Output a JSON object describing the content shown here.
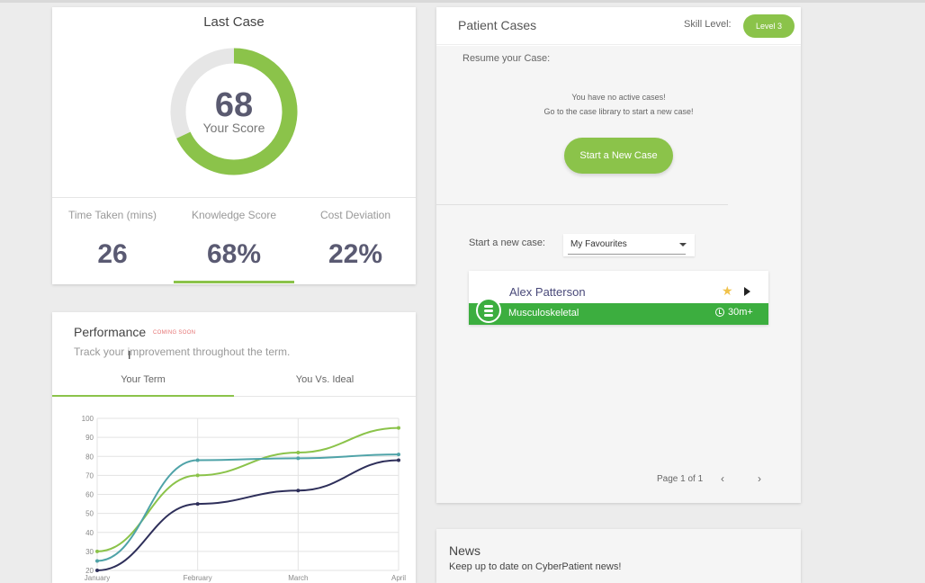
{
  "last_case": {
    "title": "Last Case",
    "score": "68",
    "score_fraction": 0.68,
    "score_label": "Your Score",
    "stats": [
      {
        "label": "Time Taken (mins)",
        "value": "26"
      },
      {
        "label": "Knowledge Score",
        "value": "68%"
      },
      {
        "label": "Cost Deviation",
        "value": "22%"
      }
    ]
  },
  "performance": {
    "title": "Performance",
    "badge": "COMING SOON",
    "subtitle": "Track your improvement throughout the term.",
    "tabs": [
      "Your Term",
      "You Vs. Ideal"
    ]
  },
  "chart_data": {
    "type": "line",
    "categories": [
      "January",
      "February",
      "March",
      "April"
    ],
    "ylim": [
      20,
      100
    ],
    "yticks": [
      20,
      30,
      40,
      50,
      60,
      70,
      80,
      90,
      100
    ],
    "series": [
      {
        "color": "#8bc34a",
        "values": [
          30,
          70,
          82,
          95
        ]
      },
      {
        "color": "#4fa3a8",
        "values": [
          25,
          78,
          79,
          81
        ]
      },
      {
        "color": "#2e2f5a",
        "values": [
          20,
          55,
          62,
          78
        ]
      }
    ],
    "grid": true
  },
  "patient_cases": {
    "title": "Patient Cases",
    "skill_label": "Skill Level:",
    "skill_value": "Level 3",
    "resume_label": "Resume your Case:",
    "no_active_line1": "You have no active cases!",
    "no_active_line2": "Go to the case library to start a new case!",
    "start_button": "Start a New Case",
    "start_new_label": "Start a new case:",
    "filter_selected": "My Favourites",
    "case": {
      "name": "Alex Patterson",
      "category": "Musculoskeletal",
      "time": "30m+"
    },
    "pagination": "Page 1 of 1",
    "prev": "‹",
    "next": "›"
  },
  "news": {
    "title": "News",
    "subtitle": "Keep up to date on CyberPatient news!"
  },
  "colors": {
    "accent": "#8bc34a",
    "case_green": "#3cae3f",
    "score_text": "#5a5a70"
  }
}
